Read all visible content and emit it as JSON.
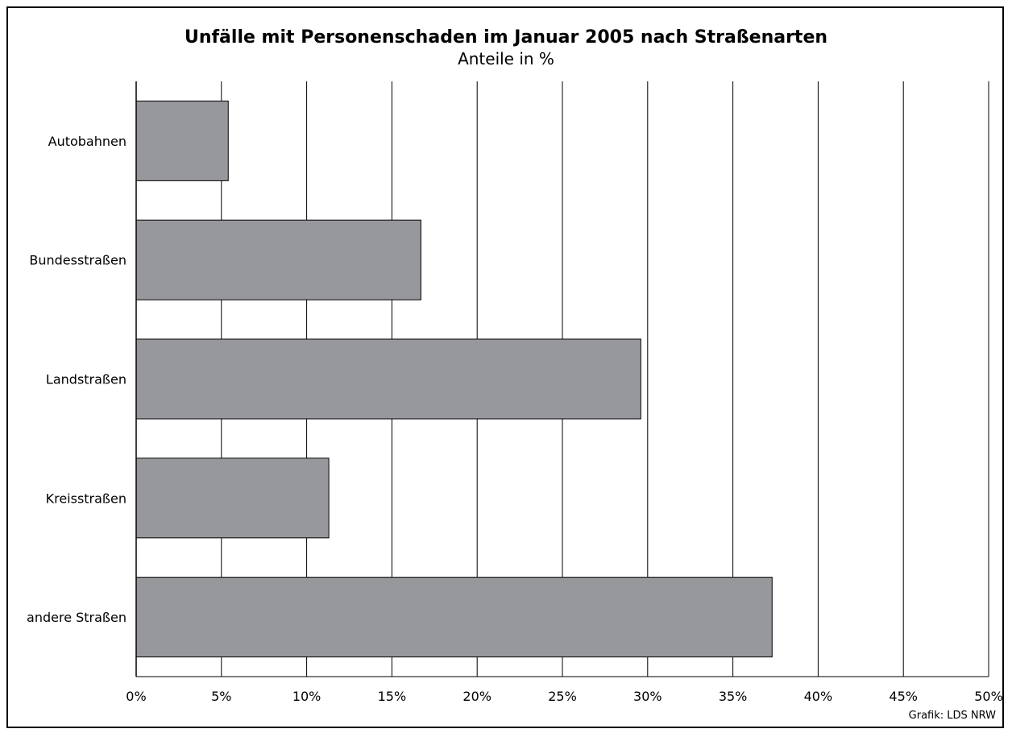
{
  "chart_data": {
    "type": "bar",
    "orientation": "horizontal",
    "title": "Unfälle mit Personenschaden im Januar 2005 nach Straßenarten",
    "subtitle": "Anteile in %",
    "categories": [
      "Autobahnen",
      "Bundesstraßen",
      "Landstraßen",
      "Kreisstraßen",
      "andere Straßen"
    ],
    "values": [
      5.4,
      16.7,
      29.6,
      11.3,
      37.3
    ],
    "xlim": [
      0,
      50
    ],
    "x_ticks": [
      0,
      5,
      10,
      15,
      20,
      25,
      30,
      35,
      40,
      45,
      50
    ],
    "x_tick_labels": [
      "0%",
      "5%",
      "10%",
      "15%",
      "20%",
      "25%",
      "30%",
      "35%",
      "40%",
      "45%",
      "50%"
    ],
    "grid": "vertical",
    "bar_color": "#97989b",
    "source": "Grafik: LDS NRW"
  }
}
